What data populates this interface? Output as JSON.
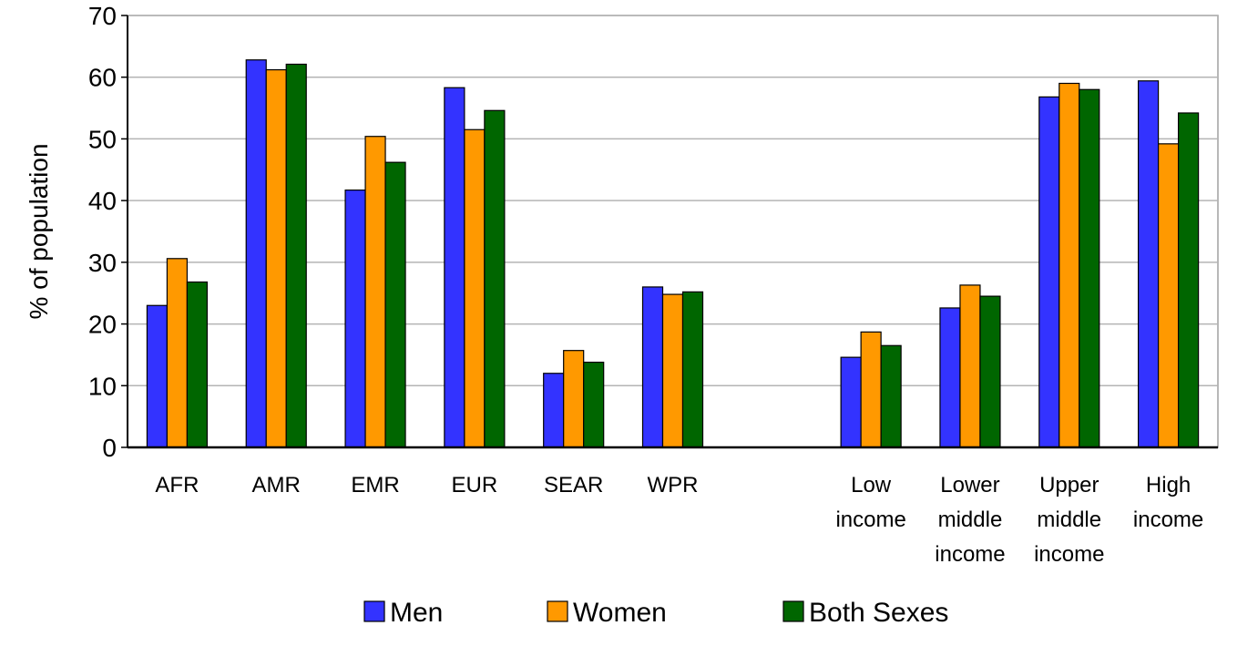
{
  "chart_data": {
    "type": "bar",
    "ylabel": "% of population",
    "ylim": [
      0,
      70
    ],
    "yticks": [
      0,
      10,
      20,
      30,
      40,
      50,
      60,
      70
    ],
    "grid": true,
    "legend_position": "bottom",
    "categories": [
      [
        "AFR"
      ],
      [
        "AMR"
      ],
      [
        "EMR"
      ],
      [
        "EUR"
      ],
      [
        "SEAR"
      ],
      [
        "WPR"
      ],
      [],
      [
        "Low",
        "income"
      ],
      [
        "Lower",
        "middle",
        "income"
      ],
      [
        "Upper",
        "middle",
        "income"
      ],
      [
        "High",
        "income"
      ]
    ],
    "series": [
      {
        "name": "Men",
        "color": "#3333ff",
        "values": [
          23,
          62.8,
          41.7,
          58.3,
          12,
          26,
          null,
          14.6,
          22.6,
          56.8,
          59.4
        ]
      },
      {
        "name": "Women",
        "color": "#ff9900",
        "values": [
          30.6,
          61.2,
          50.4,
          51.5,
          15.7,
          24.8,
          null,
          18.7,
          26.3,
          59,
          49.2
        ]
      },
      {
        "name": "Both Sexes",
        "color": "#006600",
        "values": [
          26.8,
          62.1,
          46.2,
          54.6,
          13.8,
          25.2,
          null,
          16.5,
          24.5,
          58,
          54.2
        ]
      }
    ]
  }
}
